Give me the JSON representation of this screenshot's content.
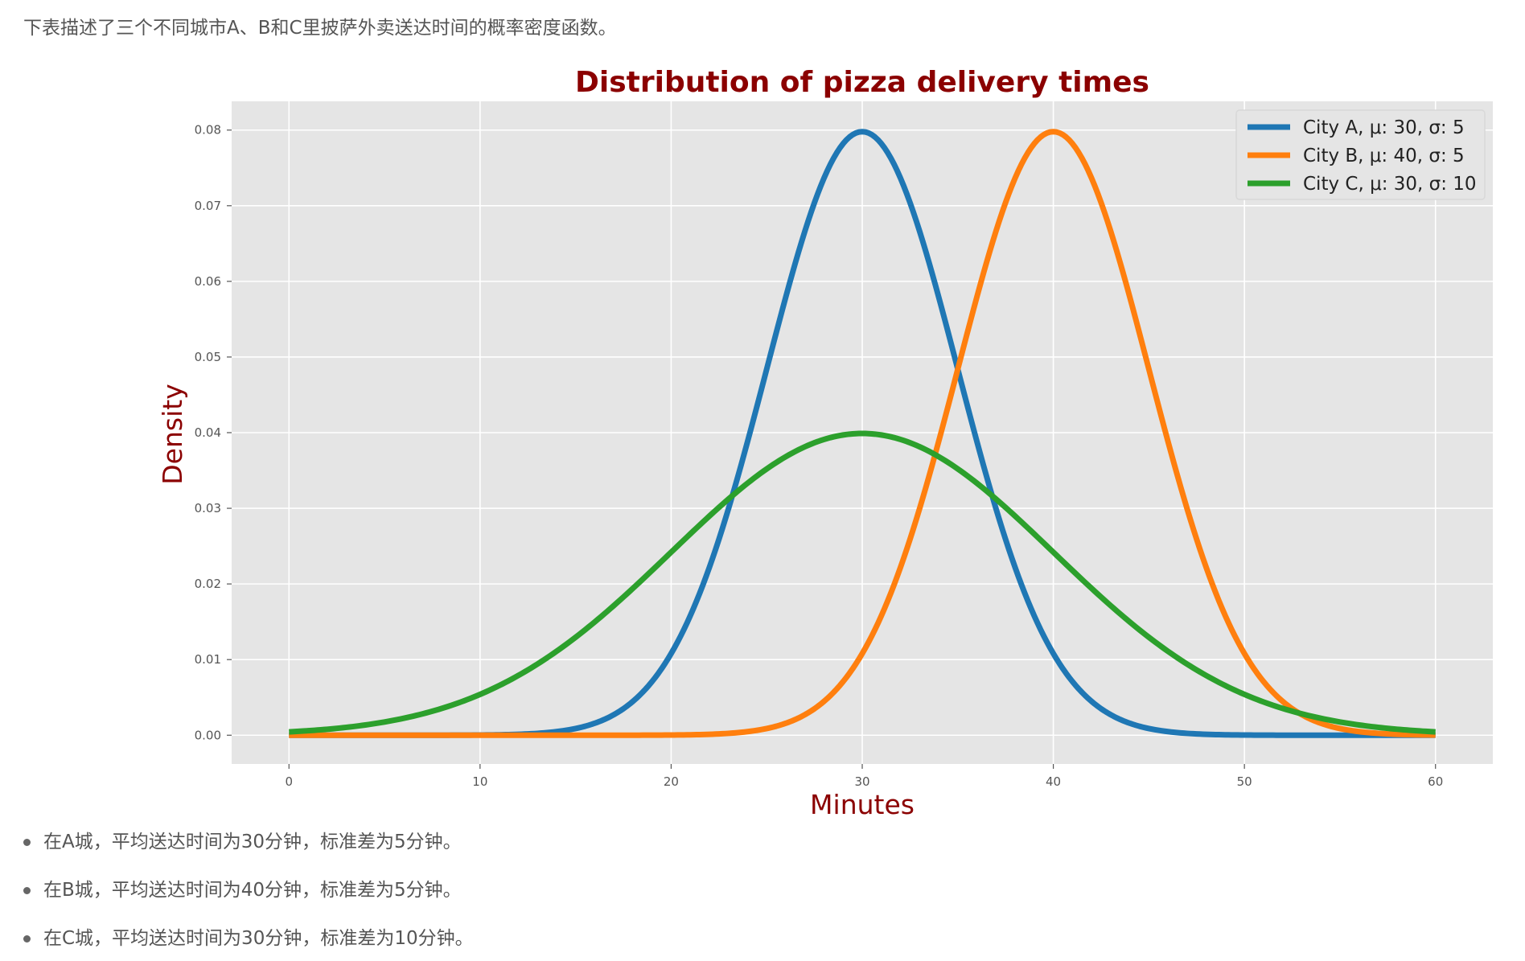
{
  "intro_text": "下表描述了三个不同城市A、B和C里披萨外卖送达时间的概率密度函数。",
  "bullets": [
    "在A城，平均送达时间为30分钟，标准差为5分钟。",
    "在B城，平均送达时间为40分钟，标准差为5分钟。",
    "在C城，平均送达时间为30分钟，标准差为10分钟。"
  ],
  "chart_data": {
    "type": "line",
    "title": "Distribution of pizza delivery times",
    "xlabel": "Minutes",
    "ylabel": "Density",
    "xlim": [
      -3,
      63
    ],
    "ylim": [
      -0.0038,
      0.0838
    ],
    "xticks": [
      0,
      10,
      20,
      30,
      40,
      50,
      60
    ],
    "xtick_labels": [
      "0",
      "10",
      "20",
      "30",
      "40",
      "50",
      "60"
    ],
    "yticks": [
      0.0,
      0.01,
      0.02,
      0.03,
      0.04,
      0.05,
      0.06,
      0.07,
      0.08
    ],
    "ytick_labels": [
      "0.00",
      "0.01",
      "0.02",
      "0.03",
      "0.04",
      "0.05",
      "0.06",
      "0.07",
      "0.08"
    ],
    "grid": true,
    "legend_position": "top-right",
    "title_color": "#8b0000",
    "label_color": "#8b0000",
    "background_color": "#e5e5e5",
    "series": [
      {
        "name": "City A, μ: 30, σ: 5",
        "mean": 30,
        "std": 5,
        "color": "#1f77b4",
        "x": [
          0,
          5,
          10,
          15,
          20,
          22,
          24,
          26,
          28,
          30,
          32,
          34,
          36,
          38,
          40,
          45,
          50,
          55,
          60
        ],
        "y": [
          0.0,
          0.0,
          0.0001,
          0.0009,
          0.0108,
          0.0222,
          0.0389,
          0.0579,
          0.0737,
          0.0798,
          0.0737,
          0.0579,
          0.0389,
          0.0222,
          0.0108,
          0.0009,
          0.0001,
          0.0,
          0.0
        ]
      },
      {
        "name": "City B, μ: 40, σ: 5",
        "mean": 40,
        "std": 5,
        "color": "#ff7f0e",
        "x": [
          0,
          10,
          20,
          25,
          30,
          32,
          34,
          36,
          38,
          40,
          42,
          44,
          46,
          48,
          50,
          55,
          60
        ],
        "y": [
          0.0,
          0.0,
          0.0001,
          0.0009,
          0.0108,
          0.0222,
          0.0389,
          0.0579,
          0.0737,
          0.0798,
          0.0737,
          0.0579,
          0.0389,
          0.0222,
          0.0108,
          0.0009,
          0.0001
        ]
      },
      {
        "name": "City C, μ: 30, σ: 10",
        "mean": 30,
        "std": 10,
        "color": "#2ca02c",
        "x": [
          0,
          5,
          10,
          15,
          20,
          25,
          30,
          35,
          40,
          45,
          50,
          55,
          60
        ],
        "y": [
          0.0004,
          0.0018,
          0.0054,
          0.013,
          0.0242,
          0.0352,
          0.0399,
          0.0352,
          0.0242,
          0.013,
          0.0054,
          0.0018,
          0.0004
        ]
      }
    ]
  }
}
